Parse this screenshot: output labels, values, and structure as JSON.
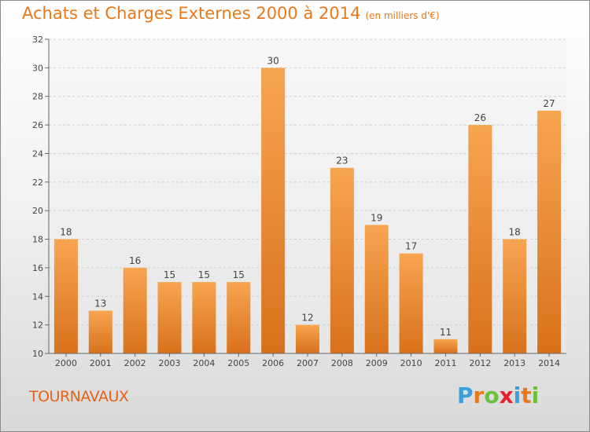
{
  "header": {
    "title": "Achats et Charges Externes 2000 à 2014",
    "subtitle": "(en milliers d'€)"
  },
  "footer": {
    "commune": "TOURNAVAUX",
    "logo": [
      "P",
      "r",
      "o",
      "x",
      "i",
      "t",
      "i"
    ],
    "logo_colors": [
      "#3aa0dc",
      "#e8791a",
      "#6cbf3a",
      "#e5212a",
      "#3aa0dc",
      "#e8791a",
      "#6cbf3a"
    ]
  },
  "chart_data": {
    "type": "bar",
    "title": "Achats et Charges Externes 2000 à 2014",
    "subtitle": "(en milliers d'€)",
    "categories": [
      "2000",
      "2001",
      "2002",
      "2003",
      "2004",
      "2005",
      "2006",
      "2007",
      "2008",
      "2009",
      "2010",
      "2011",
      "2012",
      "2013",
      "2014"
    ],
    "values": [
      18,
      13,
      16,
      15,
      15,
      15,
      30,
      12,
      23,
      19,
      17,
      11,
      26,
      18,
      27
    ],
    "ylim": [
      10,
      32
    ],
    "yticks": [
      10,
      12,
      14,
      16,
      18,
      20,
      22,
      24,
      26,
      28,
      30,
      32
    ],
    "grid": true,
    "xlabel": "",
    "ylabel": "",
    "bar_color_top": "#f7a550",
    "bar_color_bottom": "#d9711c"
  }
}
